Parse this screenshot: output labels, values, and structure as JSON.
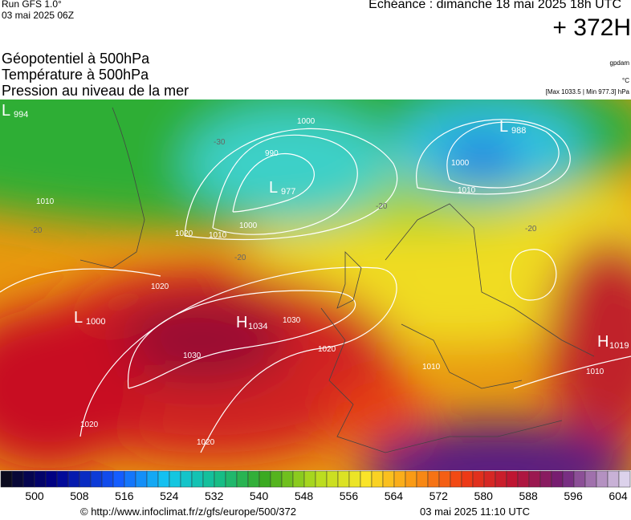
{
  "header": {
    "run": "Run GFS 1.0°",
    "run_date": "03 mai 2025 06Z",
    "forecast": "Echéance : dimanche 18 mai 2025 18h UTC",
    "lead": "+ 372H"
  },
  "titles": [
    "Géopotentiel à 500hPa",
    "Température à 500hPa",
    "Pression au niveau de la mer"
  ],
  "units": {
    "geopotential": "gpdam",
    "temperature": "°C",
    "pressure_range": "[Max 1033.5 | Min 977.3] hPa"
  },
  "map": {
    "centers": [
      {
        "letter": "L",
        "value": 994
      },
      {
        "letter": "L",
        "value": 977
      },
      {
        "letter": "L",
        "value": 988
      },
      {
        "letter": "L",
        "value": 1000
      },
      {
        "letter": "H",
        "value": 1034
      },
      {
        "letter": "H",
        "value": 1019
      }
    ],
    "isobar_labels": [
      1000,
      990,
      1000,
      1010,
      1020,
      1010,
      1020,
      1030,
      1030,
      1020,
      1020,
      1020,
      1000,
      1010,
      1010,
      1010
    ],
    "temperature_labels": [
      -30,
      -20,
      -20,
      -20,
      -20
    ]
  },
  "colorbar": {
    "ticks": [
      500,
      508,
      516,
      524,
      532,
      540,
      548,
      556,
      564,
      572,
      580,
      588,
      596,
      604
    ]
  },
  "footer": {
    "source": "© http://www.infoclimat.fr/z/gfs/europe/500/372",
    "generated": "03 mai 2025 11:10 UTC"
  }
}
